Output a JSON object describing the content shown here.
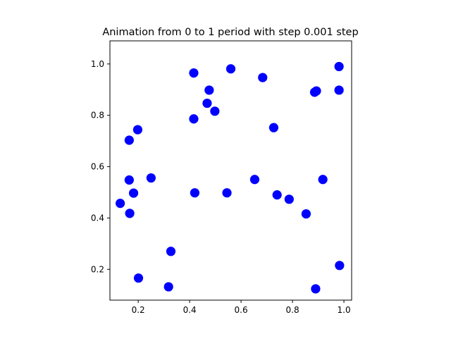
{
  "chart_data": {
    "type": "scatter",
    "title": "Animation from 0 to 1 period with step 0.001 step",
    "xlabel": "",
    "ylabel": "",
    "xlim": [
      0.09,
      1.03
    ],
    "ylim": [
      0.08,
      1.09
    ],
    "xticks": [
      0.2,
      0.4,
      0.6,
      0.8,
      1.0
    ],
    "yticks": [
      0.2,
      0.4,
      0.6,
      0.8,
      1.0
    ],
    "xtick_labels": [
      "0.2",
      "0.4",
      "0.6",
      "0.8",
      "1.0"
    ],
    "ytick_labels": [
      "0.2",
      "0.4",
      "0.6",
      "0.8",
      "1.0"
    ],
    "grid": false,
    "marker_color": "#0000ff",
    "points": [
      {
        "x": 0.13,
        "y": 0.457
      },
      {
        "x": 0.167,
        "y": 0.418
      },
      {
        "x": 0.165,
        "y": 0.548
      },
      {
        "x": 0.165,
        "y": 0.703
      },
      {
        "x": 0.182,
        "y": 0.497
      },
      {
        "x": 0.198,
        "y": 0.744
      },
      {
        "x": 0.201,
        "y": 0.166
      },
      {
        "x": 0.25,
        "y": 0.556
      },
      {
        "x": 0.318,
        "y": 0.132
      },
      {
        "x": 0.327,
        "y": 0.27
      },
      {
        "x": 0.416,
        "y": 0.965
      },
      {
        "x": 0.416,
        "y": 0.786
      },
      {
        "x": 0.42,
        "y": 0.498
      },
      {
        "x": 0.468,
        "y": 0.847
      },
      {
        "x": 0.476,
        "y": 0.898
      },
      {
        "x": 0.498,
        "y": 0.816
      },
      {
        "x": 0.545,
        "y": 0.498
      },
      {
        "x": 0.56,
        "y": 0.981
      },
      {
        "x": 0.653,
        "y": 0.55
      },
      {
        "x": 0.684,
        "y": 0.947
      },
      {
        "x": 0.727,
        "y": 0.752
      },
      {
        "x": 0.74,
        "y": 0.49
      },
      {
        "x": 0.787,
        "y": 0.473
      },
      {
        "x": 0.853,
        "y": 0.416
      },
      {
        "x": 0.886,
        "y": 0.89
      },
      {
        "x": 0.893,
        "y": 0.895
      },
      {
        "x": 0.89,
        "y": 0.124
      },
      {
        "x": 0.918,
        "y": 0.55
      },
      {
        "x": 0.981,
        "y": 0.99
      },
      {
        "x": 0.981,
        "y": 0.898
      },
      {
        "x": 0.983,
        "y": 0.215
      }
    ]
  }
}
